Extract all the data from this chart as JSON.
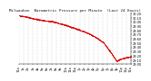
{
  "title": "Milwaukee  Barometric Pressure per Minute  (Last 24 Hours)",
  "background_color": "#ffffff",
  "plot_bg_color": "#ffffff",
  "grid_color": "#aaaaaa",
  "line_color": "#dd0000",
  "markersize": 0.8,
  "y_min": 29.0,
  "y_max": 30.22,
  "y_ticks": [
    29.0,
    29.1,
    29.2,
    29.3,
    29.4,
    29.5,
    29.6,
    29.7,
    29.8,
    29.9,
    30.0,
    30.1,
    30.2
  ],
  "num_points": 1440,
  "title_fontsize": 3.0,
  "tick_fontsize": 2.5
}
